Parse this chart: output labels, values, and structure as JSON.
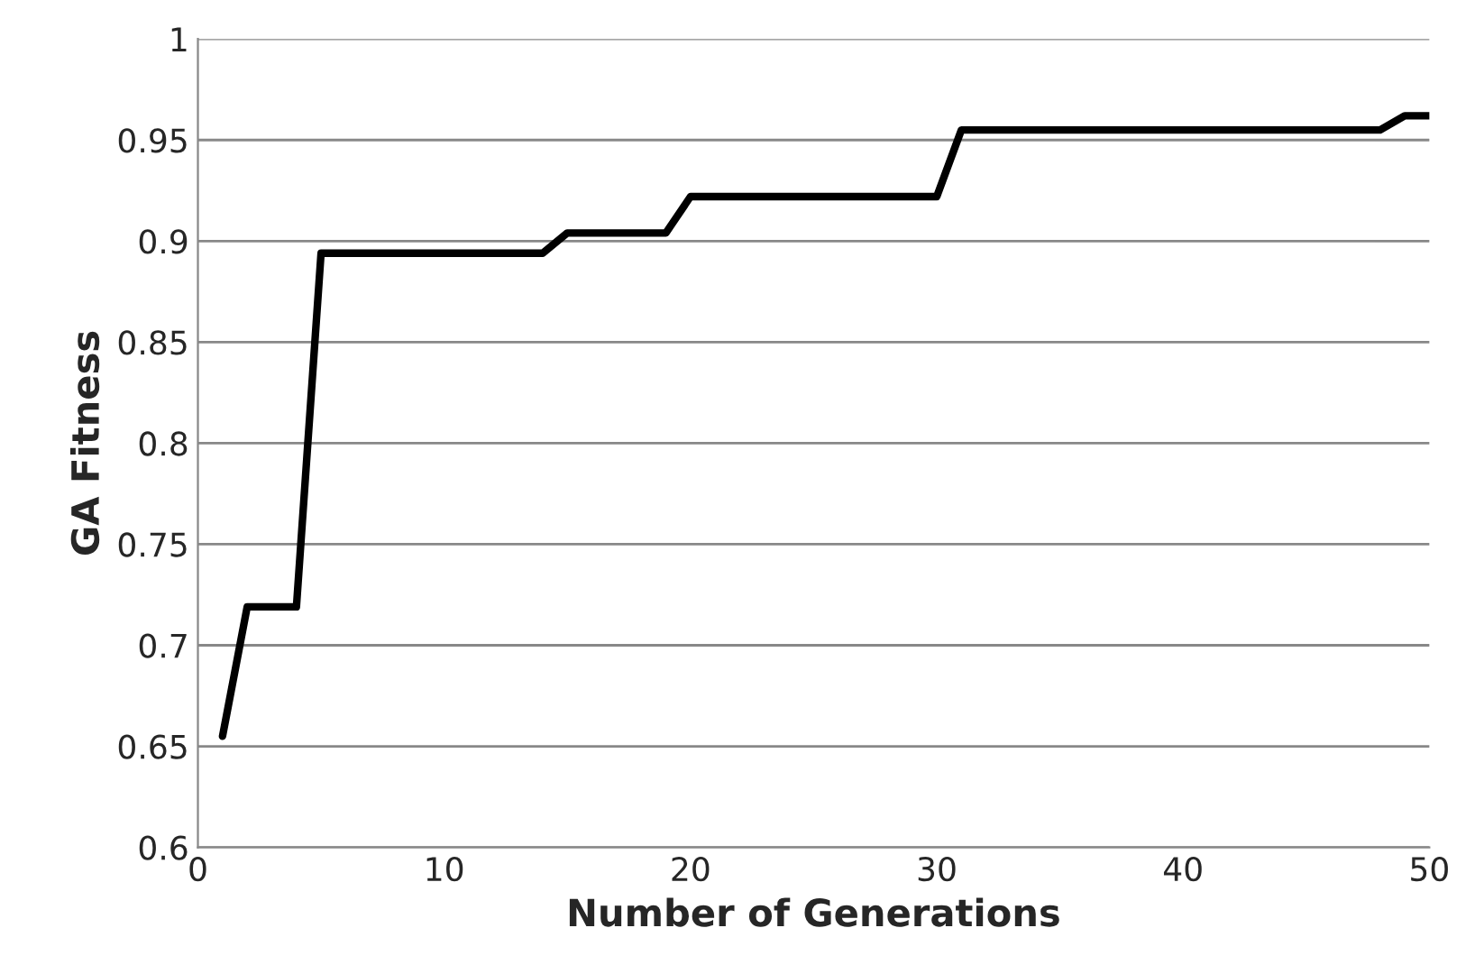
{
  "chart_data": {
    "type": "line",
    "xlabel": "Number of Generations",
    "ylabel": "GA Fitness",
    "x": [
      1,
      2,
      4,
      5,
      14,
      15,
      19,
      20,
      30,
      31,
      48,
      49,
      50
    ],
    "series": [
      {
        "color": "#000000",
        "values": [
          0.655,
          0.719,
          0.719,
          0.894,
          0.894,
          0.904,
          0.904,
          0.922,
          0.922,
          0.955,
          0.955,
          0.962,
          0.962
        ]
      }
    ],
    "xlim": [
      0,
      50
    ],
    "xticks": [
      0,
      10,
      20,
      30,
      40,
      50
    ],
    "ylim": [
      0.6,
      1
    ],
    "yticks": [
      0.6,
      0.65,
      0.7,
      0.75,
      0.8,
      0.85,
      0.9,
      0.95,
      1
    ],
    "grid": "y",
    "marker": "none",
    "line_style": "solid"
  }
}
